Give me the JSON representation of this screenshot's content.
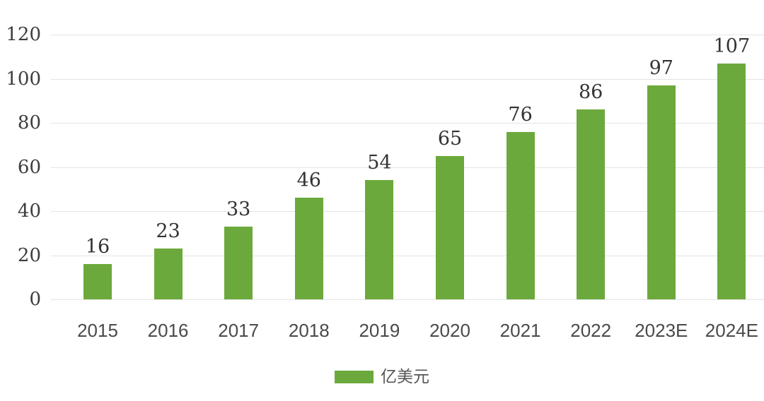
{
  "chart_data": {
    "type": "bar",
    "categories": [
      "2015",
      "2016",
      "2017",
      "2018",
      "2019",
      "2020",
      "2021",
      "2022",
      "2023E",
      "2024E"
    ],
    "values": [
      16,
      23,
      33,
      46,
      54,
      65,
      76,
      86,
      97,
      107
    ],
    "title": "",
    "xlabel": "",
    "ylabel": "",
    "ylim": [
      0,
      120
    ],
    "ytick_interval": 20,
    "yticks": [
      0,
      20,
      40,
      60,
      80,
      100,
      120
    ],
    "grid": true,
    "legend_position": "bottom-center",
    "legend_entries": [
      "亿美元"
    ],
    "data_labels_shown": true
  },
  "legend": {
    "label": "亿美元"
  },
  "colors": {
    "bar": "#6CA93C",
    "gridline": "#e4e4e4",
    "value_label_text": "#333333",
    "axis_tick_text": "#3d3d3d",
    "legend_text": "#555555",
    "background": "#ffffff"
  }
}
